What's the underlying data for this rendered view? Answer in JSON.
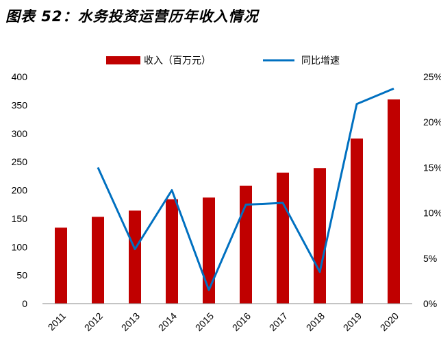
{
  "chart_data": {
    "type": "bar+line",
    "title": "图表 52：水务投资运营历年收入情况",
    "categories": [
      "2011",
      "2012",
      "2013",
      "2014",
      "2015",
      "2016",
      "2017",
      "2018",
      "2019",
      "2020"
    ],
    "series": [
      {
        "name": "收入（百万元）",
        "type": "bar",
        "axis": "left",
        "color": "#C00000",
        "values": [
          134,
          153,
          164,
          184,
          187,
          208,
          231,
          239,
          291,
          360
        ]
      },
      {
        "name": "同比增速",
        "type": "line",
        "axis": "right",
        "color": "#0070C0",
        "values": [
          null,
          15.0,
          6.0,
          12.5,
          1.5,
          10.9,
          11.1,
          3.5,
          22.0,
          23.7
        ]
      }
    ],
    "left_axis": {
      "ylim": [
        0,
        400
      ],
      "ticks": [
        "0",
        "50",
        "100",
        "150",
        "200",
        "250",
        "300",
        "350",
        "400"
      ]
    },
    "right_axis": {
      "ylim": [
        0,
        25
      ],
      "ticks": [
        "0%",
        "5%",
        "10%",
        "15%",
        "20%",
        "25%"
      ]
    },
    "legend_placement": "top",
    "grid": false
  }
}
